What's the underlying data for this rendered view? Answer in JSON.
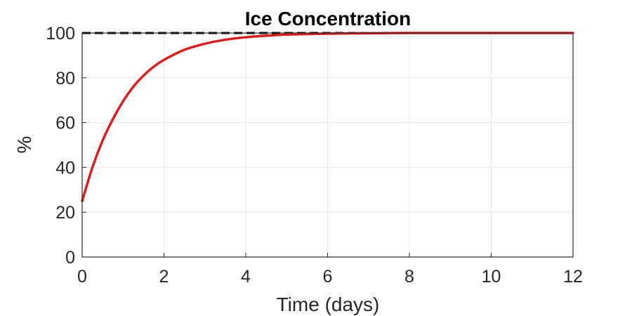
{
  "chart_data": {
    "type": "line",
    "title": "Ice Concentration",
    "xlabel": "Time (days)",
    "ylabel": "%",
    "xlim": [
      0,
      12
    ],
    "ylim": [
      0,
      100
    ],
    "xticks": [
      0,
      2,
      4,
      6,
      8,
      10,
      12
    ],
    "yticks": [
      0,
      20,
      40,
      60,
      80,
      100
    ],
    "grid": true,
    "colors": {
      "curve": "#d62020",
      "reference": "#000000"
    },
    "series": [
      {
        "style": "solid",
        "x": [
          0,
          0.25,
          0.5,
          0.75,
          1,
          1.25,
          1.5,
          1.75,
          2,
          2.5,
          3,
          3.5,
          4,
          4.5,
          5,
          6,
          7,
          8,
          9,
          10,
          11,
          12
        ],
        "y": [
          25,
          40,
          52,
          61.5,
          69.5,
          76,
          81,
          85,
          88,
          92.5,
          95.2,
          97,
          98.1,
          98.8,
          99.3,
          99.7,
          99.9,
          100,
          100,
          100,
          100,
          100
        ]
      },
      {
        "style": "dashed",
        "x": [
          0,
          12
        ],
        "y": [
          100,
          100
        ]
      }
    ]
  }
}
